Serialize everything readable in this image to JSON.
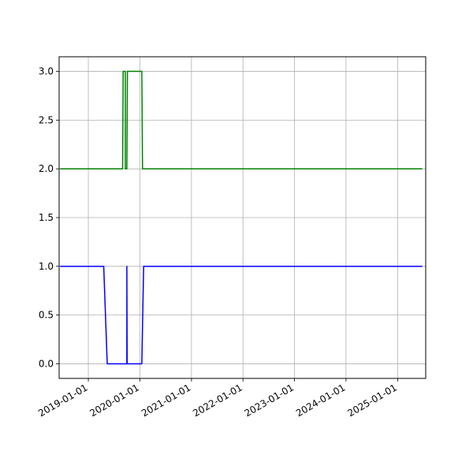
{
  "chart_data": {
    "type": "line",
    "title": "",
    "xlabel": "",
    "ylabel": "",
    "grid": true,
    "xlim": [
      "2018-06-08",
      "2025-07-19"
    ],
    "ylim": [
      -0.15,
      3.15
    ],
    "x_tick_labels": [
      "2019-01-01",
      "2020-01-01",
      "2021-01-01",
      "2022-01-01",
      "2023-01-01",
      "2024-01-01",
      "2025-01-01"
    ],
    "y_tick_labels": [
      "0.0",
      "0.5",
      "1.0",
      "1.5",
      "2.0",
      "2.5",
      "3.0"
    ],
    "series": [
      {
        "color": "#0000ff",
        "points": [
          [
            "2018-06-15",
            1.0
          ],
          [
            "2019-04-20",
            1.0
          ],
          [
            "2019-05-15",
            0.0
          ],
          [
            "2019-10-01",
            0.0
          ],
          [
            "2019-10-01",
            1.0
          ],
          [
            "2019-10-03",
            0.0
          ],
          [
            "2020-01-15",
            0.0
          ],
          [
            "2020-01-28",
            1.0
          ],
          [
            "2025-06-25",
            1.0
          ]
        ]
      },
      {
        "color": "#008000",
        "points": [
          [
            "2018-06-15",
            2.0
          ],
          [
            "2019-09-01",
            2.0
          ],
          [
            "2019-09-05",
            3.0
          ],
          [
            "2019-09-20",
            3.0
          ],
          [
            "2019-09-20",
            2.0
          ],
          [
            "2019-10-01",
            2.0
          ],
          [
            "2019-10-05",
            3.0
          ],
          [
            "2020-01-15",
            3.0
          ],
          [
            "2020-01-20",
            2.0
          ],
          [
            "2025-06-25",
            2.0
          ]
        ]
      }
    ]
  }
}
